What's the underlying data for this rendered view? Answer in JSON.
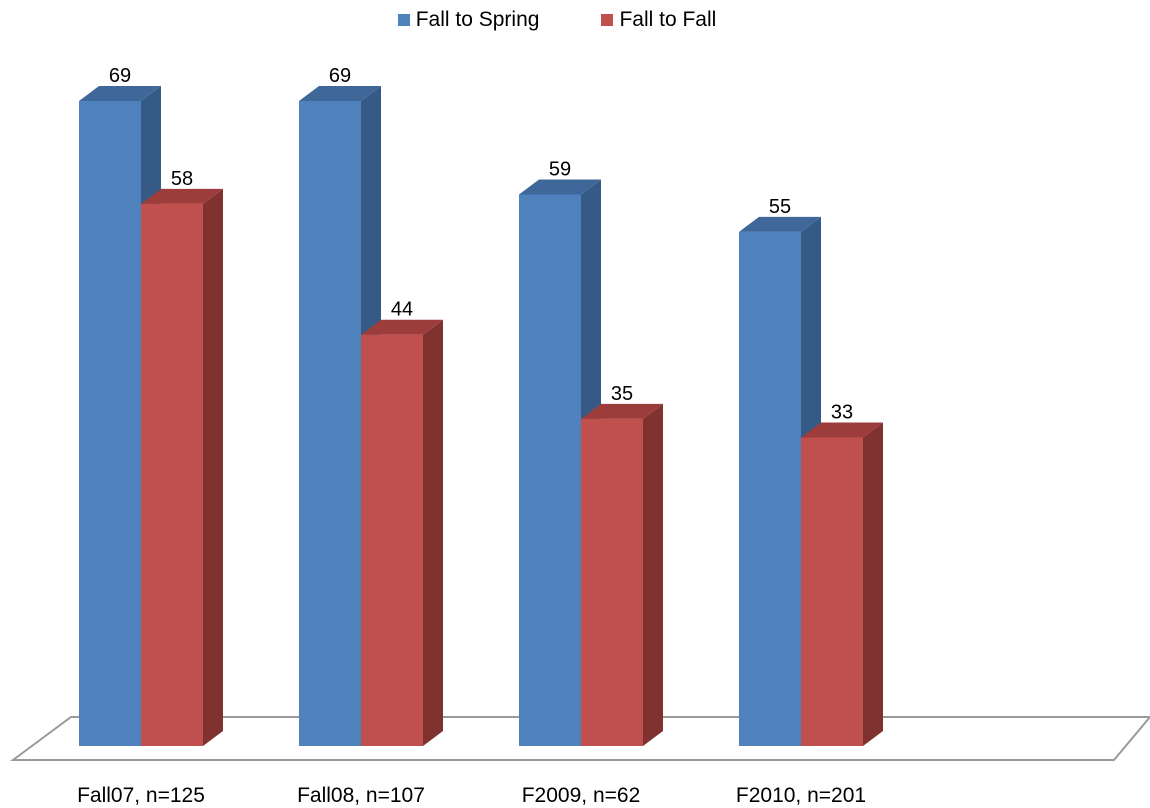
{
  "chart_data": {
    "type": "bar",
    "style": "3d-clustered-column",
    "categories": [
      "Fall07, n=125",
      "Fall08, n=107",
      "F2009, n=62",
      "F2010, n=201"
    ],
    "series": [
      {
        "name": "Fall to Spring",
        "values": [
          69,
          69,
          59,
          55
        ],
        "color": "#4F81BD",
        "side_color": "#355A86",
        "top_color": "#3F679A"
      },
      {
        "name": "Fall to Fall",
        "values": [
          58,
          44,
          35,
          33
        ],
        "color": "#C0504D",
        "side_color": "#7F3230",
        "top_color": "#9C3D3B"
      }
    ],
    "ylim": [
      0,
      69
    ],
    "grid": false,
    "legend_position": "top"
  }
}
